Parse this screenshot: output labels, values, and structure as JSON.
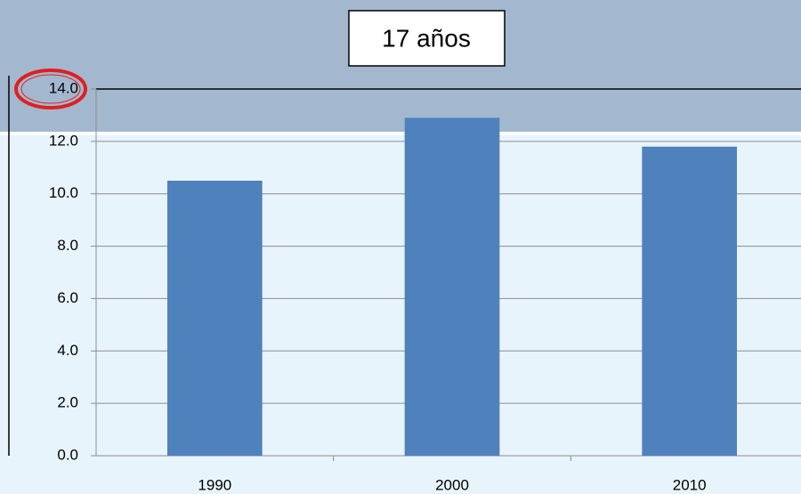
{
  "chart_data": {
    "type": "bar",
    "title": "17 años",
    "categories": [
      "1990",
      "2000",
      "2010"
    ],
    "values": [
      10.5,
      12.9,
      11.8
    ],
    "color": "#4f81bd",
    "ylim": [
      0,
      14
    ],
    "yticks": [
      {
        "value": 0,
        "label": "0.0"
      },
      {
        "value": 2,
        "label": "2.0"
      },
      {
        "value": 4,
        "label": "4.0"
      },
      {
        "value": 6,
        "label": "6.0"
      },
      {
        "value": 8,
        "label": "8.0"
      },
      {
        "value": 10,
        "label": "10.0"
      },
      {
        "value": 12,
        "label": "12.0"
      },
      {
        "value": 14,
        "label": "14.0"
      }
    ],
    "grid": true
  }
}
